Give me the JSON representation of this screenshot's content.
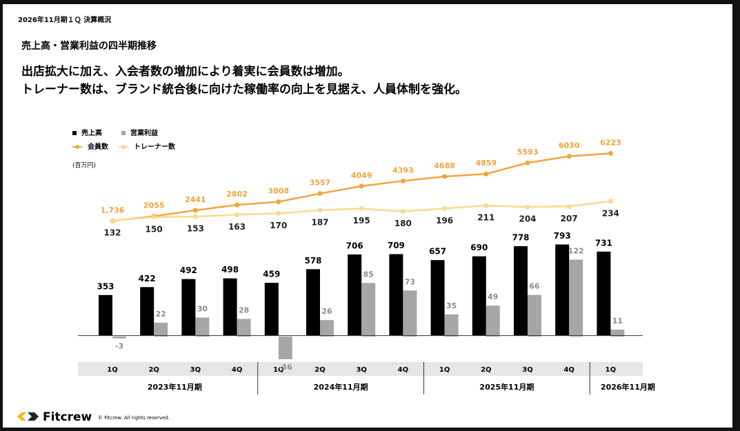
{
  "slide": {
    "doc_title": "2026年11月期１Ｑ 決算概況",
    "section_title": "売上高・営業利益の四半期推移",
    "headline": [
      "出店拡大に加え、入会者数の増加により着実に会員数は増加。",
      "トレーナー数は、ブランド統合後に向けた稼働率の向上を見据え、人員体制を強化。"
    ],
    "brand": "Fitcrew",
    "copyright": "© Fitcrew. All rights reserved."
  },
  "chart_data": {
    "type": "bar_line",
    "unit_label": "(百万円)",
    "categories": [
      "1Q",
      "2Q",
      "3Q",
      "4Q",
      "1Q",
      "2Q",
      "3Q",
      "4Q",
      "1Q",
      "2Q",
      "3Q",
      "4Q",
      "1Q"
    ],
    "periods": [
      "2023年11月期",
      "2024年11月期",
      "2025年11月期",
      "2026年11月期"
    ],
    "ylim": [
      -200,
      1720
    ],
    "y2lim": [
      -35,
      315
    ],
    "y3lim": [
      -7400,
      7250
    ],
    "y4lim": [
      -600,
      570
    ],
    "series": [
      {
        "name": "売上高",
        "type": "bar",
        "color": "#000000",
        "axis": "y",
        "values": [
          353,
          422,
          492,
          498,
          459,
          578,
          706,
          709,
          657,
          690,
          778,
          793,
          731
        ]
      },
      {
        "name": "営業利益",
        "type": "bar",
        "color": "#a6a6a6",
        "axis": "y2",
        "values": [
          -3,
          22,
          30,
          28,
          -36,
          26,
          85,
          73,
          35,
          49,
          66,
          122,
          11
        ]
      },
      {
        "name": "会員数",
        "type": "line",
        "color": "#f5a33b",
        "axis": "y3",
        "values": [
          1736,
          2055,
          2441,
          2802,
          3008,
          3557,
          4049,
          4393,
          4688,
          4859,
          5593,
          6030,
          6223
        ],
        "value_labels": [
          "1,736",
          "2055",
          "2441",
          "2802",
          "3008",
          "3557",
          "4049",
          "4393",
          "4688",
          "4859",
          "5593",
          "6030",
          "6223"
        ]
      },
      {
        "name": "トレーナー数",
        "type": "line",
        "color": "#fcd98f",
        "axis": "y4",
        "values": [
          132,
          150,
          153,
          163,
          170,
          187,
          195,
          180,
          196,
          211,
          204,
          207,
          234
        ]
      }
    ]
  }
}
